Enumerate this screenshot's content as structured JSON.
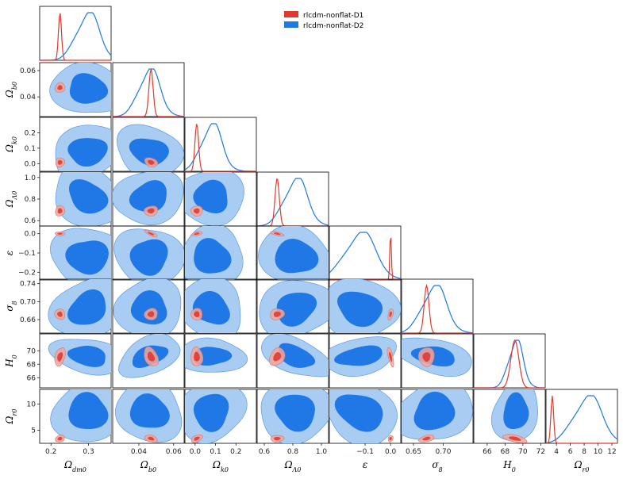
{
  "chart_data": {
    "type": "triangle-corner",
    "legend": {
      "placement": "top-center",
      "entries": [
        {
          "label": "rlcdm-nonflat-D1",
          "color": "#e03a2f"
        },
        {
          "label": "rlcdm-nonflat-D2",
          "color": "#1f78e6"
        }
      ]
    },
    "colors": {
      "d1": "#e03a2f",
      "d2": "#1f78e6",
      "d2_inner": "#1f78e6",
      "d2_outer": "#a9ccf3",
      "d1_inner": "#e03a2f",
      "d1_outer": "#f2a49c"
    },
    "parameters": [
      {
        "id": "odm",
        "label_base": "Ω",
        "label_sub": "dm0",
        "range": [
          0.17,
          0.36
        ],
        "ticks": [
          0.2,
          0.3
        ],
        "tick_labels": [
          "0.2",
          "0.3"
        ],
        "d1": {
          "mean": 0.224,
          "sd": 0.004
        },
        "d2": {
          "mean": 0.298,
          "sd": 0.03
        }
      },
      {
        "id": "ob",
        "label_base": "Ω",
        "label_sub": "b0",
        "range": [
          0.025,
          0.066
        ],
        "ticks": [
          0.04,
          0.06
        ],
        "tick_labels": [
          "0.04",
          "0.06"
        ],
        "d1": {
          "mean": 0.047,
          "sd": 0.0012
        },
        "d2": {
          "mean": 0.046,
          "sd": 0.006
        }
      },
      {
        "id": "ok",
        "label_base": "Ω",
        "label_sub": "k0",
        "range": [
          -0.05,
          0.3
        ],
        "ticks": [
          0.0,
          0.1,
          0.2
        ],
        "tick_labels": [
          "0.0",
          "0.1",
          "0.2"
        ],
        "d1": {
          "mean": 0.008,
          "sd": 0.009
        },
        "d2": {
          "mean": 0.08,
          "sd": 0.05
        }
      },
      {
        "id": "ol",
        "label_base": "Ω",
        "label_sub": "Λ0",
        "range": [
          0.55,
          1.05
        ],
        "ticks": [
          0.6,
          0.8,
          1.0
        ],
        "tick_labels": [
          "0.6",
          "0.8",
          "1.0"
        ],
        "d1": {
          "mean": 0.69,
          "sd": 0.015
        },
        "d2": {
          "mean": 0.82,
          "sd": 0.08
        }
      },
      {
        "id": "eps",
        "label_base": "ε",
        "label_sub": "",
        "range": [
          -0.24,
          0.04
        ],
        "ticks": [
          -0.1,
          0.0
        ],
        "tick_labels": [
          "−0.1",
          "0.0"
        ],
        "yticks": [
          -0.2,
          -0.1,
          0.0
        ],
        "ytick_labels": [
          "−0.2",
          "−0.1",
          "0.0"
        ],
        "d1": {
          "mean": 0.0,
          "sd": 0.003
        },
        "d2": {
          "mean": -0.12,
          "sd": 0.06
        }
      },
      {
        "id": "s8",
        "label_base": "σ",
        "label_sub": "8",
        "range": [
          0.63,
          0.75
        ],
        "ticks": [
          0.65,
          0.7
        ],
        "tick_labels": [
          "0.65",
          "0.70"
        ],
        "yticks": [
          0.66,
          0.7,
          0.74
        ],
        "ytick_labels": [
          "0.66",
          "0.70",
          "0.74"
        ],
        "d1": {
          "mean": 0.672,
          "sd": 0.004
        },
        "d2": {
          "mean": 0.685,
          "sd": 0.02
        }
      },
      {
        "id": "h0",
        "label_base": "H",
        "label_sub": "0",
        "range": [
          64.5,
          72.5
        ],
        "ticks": [
          66,
          68,
          70,
          72
        ],
        "tick_labels": [
          "66",
          "68",
          "70",
          "72"
        ],
        "yticks": [
          66,
          68,
          70
        ],
        "ytick_labels": [
          "66",
          "68",
          "70"
        ],
        "d1": {
          "mean": 69.1,
          "sd": 0.45
        },
        "d2": {
          "mean": 69.2,
          "sd": 0.8
        }
      },
      {
        "id": "orr",
        "label_base": "Ω",
        "label_sub": "r0",
        "range": [
          2.5,
          12.8
        ],
        "ticks": [
          4,
          6,
          8,
          10,
          12
        ],
        "tick_labels": [
          "4",
          "6",
          "8",
          "10",
          "12"
        ],
        "yticks": [
          5,
          10
        ],
        "ytick_labels": [
          "5",
          "10"
        ],
        "d1": {
          "mean": 3.4,
          "sd": 0.2
        },
        "d2": {
          "mean": 8.5,
          "sd": 2.0
        }
      }
    ]
  }
}
